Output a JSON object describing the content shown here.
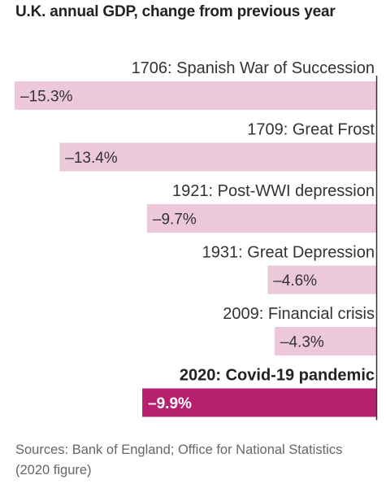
{
  "chart_data": {
    "type": "bar",
    "orientation": "horizontal",
    "title": "U.K. annual GDP, change from previous year",
    "categories": [
      "1706: Spanish War of Succession",
      "1709: Great Frost",
      "1921: Post-WWI depression",
      "1931: Great Depression",
      "2009: Financial crisis",
      "2020: Covid-19 pandemic"
    ],
    "values": [
      -15.3,
      -13.4,
      -9.7,
      -4.6,
      -4.3,
      -9.9
    ],
    "value_labels": [
      "–15.3%",
      "–13.4%",
      "–9.7%",
      "–4.6%",
      "–4.3%",
      "–9.9%"
    ],
    "highlight_index": 5,
    "unit": "%",
    "xlim": [
      -16,
      0
    ],
    "colors": {
      "bar": "#ecc8da",
      "highlight": "#b7206f",
      "axis": "#333333"
    },
    "source": "Sources: Bank of England; Office for National Statistics (2020 figure)"
  }
}
